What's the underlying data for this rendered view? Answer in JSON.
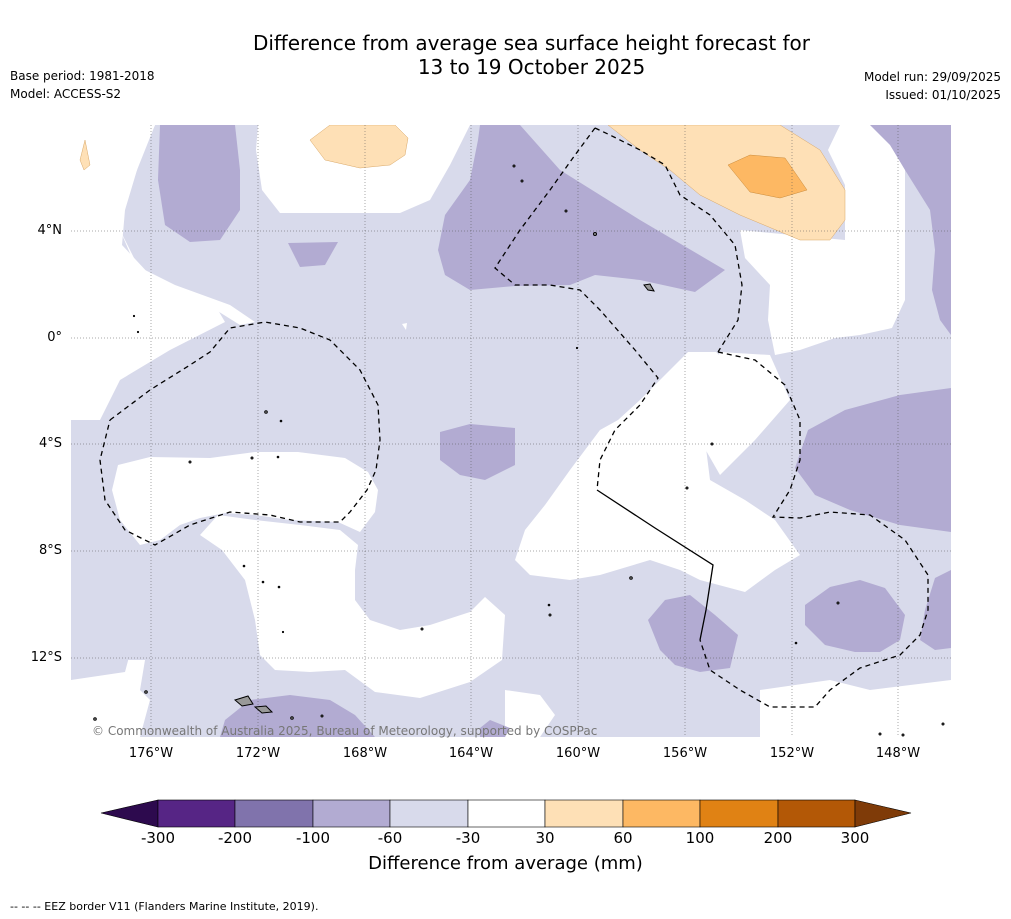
{
  "header": {
    "title_line1": "Difference from average sea surface height forecast for",
    "title_line2": "13 to 19 October 2025",
    "base_period": "Base period: 1981-2018",
    "model": "Model: ACCESS-S2",
    "model_run": "Model run: 29/09/2025",
    "issued": "Issued: 01/10/2025"
  },
  "map": {
    "latitude_labels": [
      "4°N",
      "0°",
      "4°S",
      "8°S",
      "12°S"
    ],
    "longitude_labels": [
      "176°W",
      "172°W",
      "168°W",
      "164°W",
      "160°W",
      "156°W",
      "152°W",
      "148°W"
    ],
    "copyright": "© Commonwealth of Australia 2025, Bureau of Meteorology, supported by COSPPac"
  },
  "colorbar": {
    "title": "Difference from average (mm)",
    "ticks": [
      "-300",
      "-200",
      "-100",
      "-60",
      "-30",
      "30",
      "60",
      "100",
      "200",
      "300"
    ],
    "colors": {
      "below_-300": "#2d0a4e",
      "-300_-200": "#562585",
      "-200_-100": "#8073ac",
      "-100_-60": "#b2abd2",
      "-60_-30": "#d8daeb",
      "-30_30": "#ffffff",
      "30_60": "#fee0b6",
      "60_100": "#fdb863",
      "100_200": "#e08214",
      "200_300": "#b35806",
      "above_300": "#7f3b08"
    }
  },
  "footnote": "--  --  -- EEZ border V11 (Flanders Marine Institute, 2019)."
}
